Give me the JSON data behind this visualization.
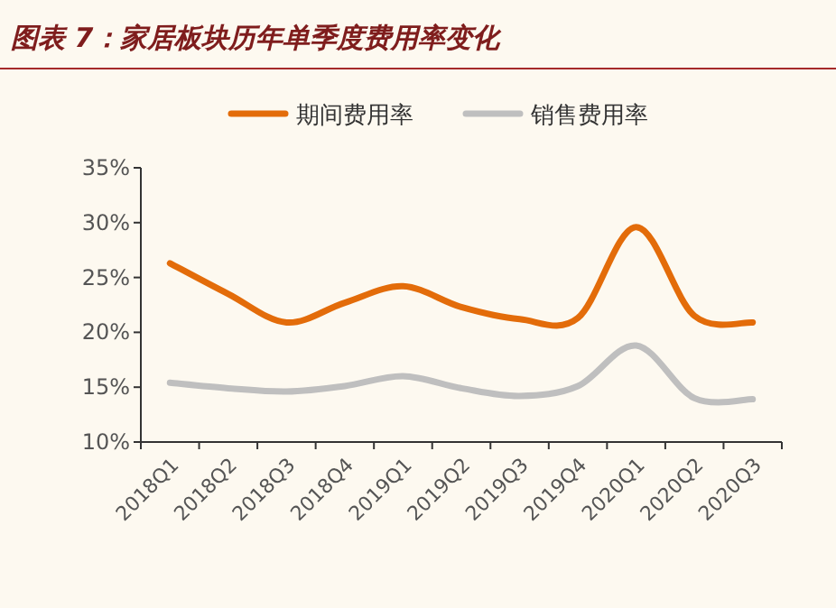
{
  "chart_data": {
    "type": "line",
    "title": "图表 7：家居板块历年单季度费用率变化",
    "categories": [
      "2018Q1",
      "2018Q2",
      "2018Q3",
      "2018Q4",
      "2019Q1",
      "2019Q2",
      "2019Q3",
      "2019Q4",
      "2020Q1",
      "2020Q2",
      "2020Q3"
    ],
    "series": [
      {
        "name": "期间费用率",
        "color": "#e36c0a",
        "values": [
          26.3,
          23.5,
          20.9,
          22.7,
          24.2,
          22.3,
          21.2,
          21.3,
          29.6,
          21.5,
          20.9
        ]
      },
      {
        "name": "销售费用率",
        "color": "#bfbfbf",
        "values": [
          15.4,
          14.9,
          14.6,
          15.1,
          16.0,
          14.9,
          14.2,
          15.1,
          18.8,
          14.0,
          13.9
        ]
      }
    ],
    "ylim": [
      10,
      35
    ],
    "yticks": [
      {
        "value": 10,
        "label": "10%"
      },
      {
        "value": 15,
        "label": "15%"
      },
      {
        "value": 20,
        "label": "20%"
      },
      {
        "value": 25,
        "label": "25%"
      },
      {
        "value": 30,
        "label": "30%"
      },
      {
        "value": 35,
        "label": "35%"
      }
    ],
    "grid": false,
    "legend": "top",
    "marker": "none",
    "line_style": "solid"
  }
}
